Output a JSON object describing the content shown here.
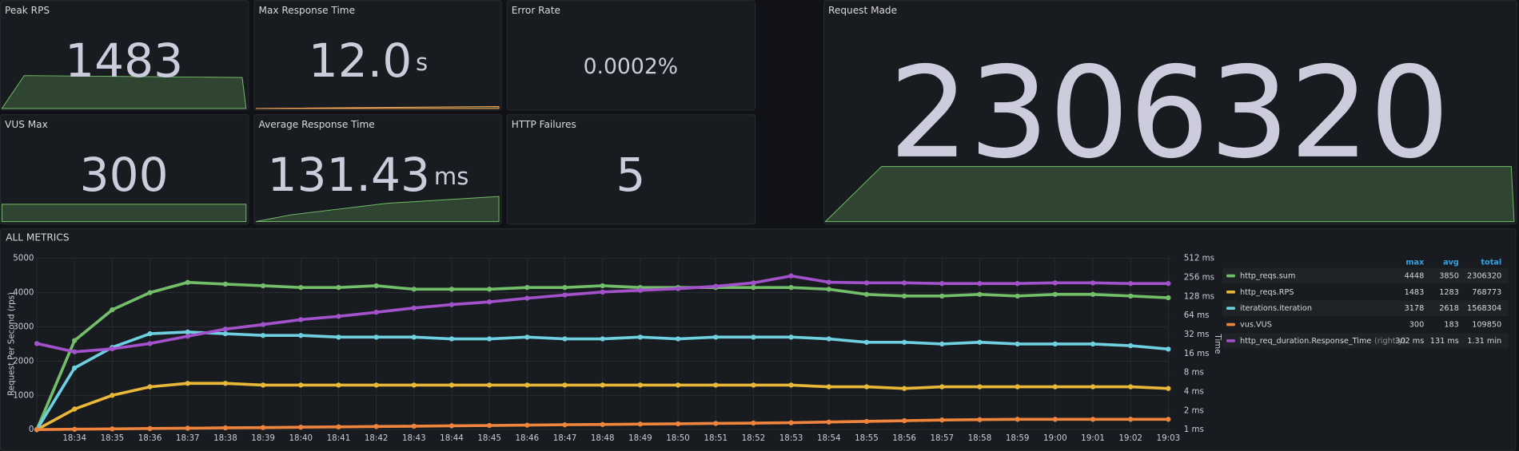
{
  "panels": [
    {
      "title": "Peak RPS",
      "value": 1483,
      "color": "#73bf69"
    },
    {
      "title": "Max Response Time",
      "value": "12.0",
      "unit": "s",
      "color": "#ffab57"
    },
    {
      "title": "Error Rate",
      "value": "0.0002%",
      "color": "#73bf69"
    },
    {
      "title": "VUS Max",
      "value": 300,
      "color": "#73bf69"
    },
    {
      "title": "Average Response Time",
      "value": 131.43,
      "unit": "ms",
      "color": "#73bf69"
    },
    {
      "title": "HTTP Failures",
      "value": 5,
      "color": "#73bf69"
    },
    {
      "title": "Request Made",
      "value": 2306320,
      "color": "#73bf69"
    }
  ],
  "chart_data": {
    "type": "line",
    "title": "ALL METRICS",
    "ylabel": "Request Per Second (rps)",
    "y2label": "Time",
    "categories": [
      null,
      "18:34",
      "18:35",
      "18:36",
      "18:37",
      "18:38",
      "18:39",
      "18:40",
      "18:41",
      "18:42",
      "18:43",
      "18:44",
      "18:45",
      "18:46",
      "18:47",
      "18:48",
      "18:49",
      "18:50",
      "18:51",
      "18:52",
      "18:53",
      "18:54",
      "18:55",
      "18:56",
      "18:57",
      "18:58",
      "18:59",
      "19:00",
      "19:01",
      "19:02",
      "19:03"
    ],
    "ylim": [
      0,
      5000
    ],
    "yticks": [
      0,
      1000,
      2000,
      3000,
      4000,
      5000
    ],
    "y2lim": [
      1,
      512
    ],
    "y2log": true,
    "y2ticks": [
      {
        "value": 1,
        "label": "1 ms"
      },
      {
        "value": 2,
        "label": "2 ms"
      },
      {
        "value": 4,
        "label": "4 ms"
      },
      {
        "value": 8,
        "label": "8 ms"
      },
      {
        "value": 16,
        "label": "16 ms"
      },
      {
        "value": 32,
        "label": "32 ms"
      },
      {
        "value": 64,
        "label": "64 ms"
      },
      {
        "value": 128,
        "label": "128 ms"
      },
      {
        "value": 256,
        "label": "256 ms"
      },
      {
        "value": 512,
        "label": "512 ms"
      }
    ],
    "grid": true,
    "legend_columns": [
      "max",
      "avg",
      "total"
    ],
    "series": [
      {
        "name": "http_reqs.sum",
        "color": "#73bf69",
        "legend_values": [
          4448,
          3850,
          2306320
        ],
        "values": [
          0,
          2600,
          3500,
          4000,
          4300,
          4250,
          4200,
          4150,
          4150,
          4200,
          4100,
          4100,
          4100,
          4150,
          4150,
          4200,
          4150,
          4150,
          4150,
          4150,
          4150,
          4100,
          3950,
          3900,
          3900,
          3950,
          3900,
          3950,
          3950,
          3900,
          3850
        ]
      },
      {
        "name": "http_reqs.RPS",
        "color": "#eab839",
        "legend_values": [
          1483,
          1283,
          768773
        ],
        "values": [
          0,
          600,
          1000,
          1250,
          1350,
          1350,
          1300,
          1300,
          1300,
          1300,
          1300,
          1300,
          1300,
          1300,
          1300,
          1300,
          1300,
          1300,
          1300,
          1300,
          1300,
          1250,
          1250,
          1200,
          1250,
          1250,
          1250,
          1250,
          1250,
          1250,
          1200
        ]
      },
      {
        "name": "iterations.iteration",
        "color": "#6ed0e0",
        "legend_values": [
          3178,
          2618,
          1568304
        ],
        "values": [
          0,
          1800,
          2400,
          2800,
          2850,
          2800,
          2750,
          2750,
          2700,
          2700,
          2700,
          2650,
          2650,
          2700,
          2650,
          2650,
          2700,
          2650,
          2700,
          2700,
          2700,
          2650,
          2550,
          2550,
          2500,
          2550,
          2500,
          2500,
          2500,
          2450,
          2350
        ]
      },
      {
        "name": "vus.VUS",
        "color": "#ef843c",
        "legend_values": [
          300,
          183,
          109850
        ],
        "values": [
          0,
          10,
          20,
          30,
          40,
          50,
          60,
          70,
          80,
          90,
          100,
          110,
          120,
          130,
          140,
          150,
          160,
          170,
          180,
          190,
          200,
          220,
          240,
          260,
          280,
          290,
          300,
          300,
          300,
          300,
          300
        ]
      },
      {
        "name": "http_req_duration.Response_Time",
        "note": "(right-y)",
        "axis": "y2",
        "color": "#a352cc",
        "legend_values": [
          "302 ms",
          "131 ms",
          "1.31 min"
        ],
        "values": [
          23,
          17,
          19,
          23,
          30,
          39,
          46,
          55,
          62,
          72,
          84,
          95,
          105,
          120,
          135,
          150,
          160,
          170,
          185,
          210,
          270,
          215,
          210,
          210,
          205,
          205,
          205,
          210,
          210,
          205,
          205
        ]
      }
    ]
  }
}
